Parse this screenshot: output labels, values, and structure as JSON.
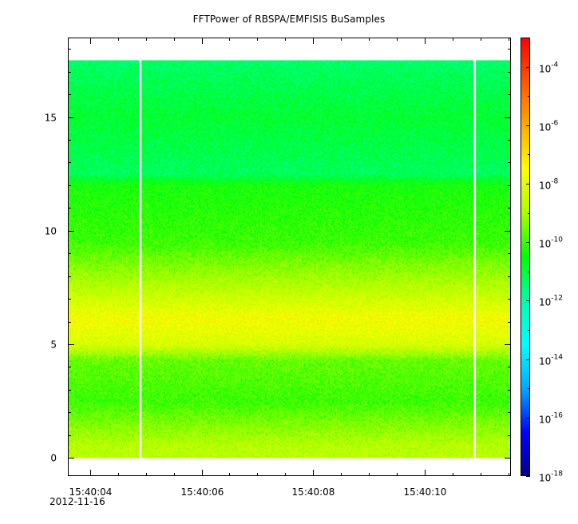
{
  "chart_data": {
    "type": "heatmap",
    "title": "FFTPower of RBSPA/EMFISIS  BuSamples",
    "xlabel": "",
    "ylabel": "",
    "x_start_label_date": "2012-11-16",
    "x_ticks": [
      "15:40:04",
      "15:40:06",
      "15:40:08",
      "15:40:10"
    ],
    "x_tick_values_s": [
      4,
      6,
      8,
      10
    ],
    "xlim_s": [
      3.6,
      11.55
    ],
    "y_ticks": [
      0,
      5,
      10,
      15
    ],
    "ylim": [
      -0.8,
      18.5
    ],
    "data_y_range": [
      0,
      17.5
    ],
    "gaps_s": [
      4.9,
      10.9
    ],
    "colorbar": {
      "scale": "log",
      "range": [
        1e-18,
        0.001
      ],
      "tick_exponents": [
        -4,
        -6,
        -8,
        -10,
        -12,
        -14,
        -16,
        -18
      ],
      "tick_base": "10"
    },
    "spectrum_log10_by_frequency": [
      {
        "y": 0.5,
        "log10_power": -8.7
      },
      {
        "y": 2.5,
        "log10_power": -10.0
      },
      {
        "y": 4.3,
        "log10_power": -9.6
      },
      {
        "y": 5.0,
        "log10_power": -8.2
      },
      {
        "y": 6.1,
        "log10_power": -7.6
      },
      {
        "y": 7.2,
        "log10_power": -8.5
      },
      {
        "y": 9.5,
        "log10_power": -10.0
      },
      {
        "y": 12.0,
        "log10_power": -10.4
      },
      {
        "y": 12.5,
        "log10_power": -11.3
      },
      {
        "y": 15.0,
        "log10_power": -10.9
      },
      {
        "y": 17.5,
        "log10_power": -11.4
      }
    ],
    "colors": {
      "gap": "#ffffff",
      "colormap": [
        "#00008b",
        "#0000ff",
        "#00aaff",
        "#00ffff",
        "#00ffaa",
        "#00ff00",
        "#aaff00",
        "#ffff00",
        "#ffaa00",
        "#ff5500",
        "#ff0000"
      ]
    }
  }
}
